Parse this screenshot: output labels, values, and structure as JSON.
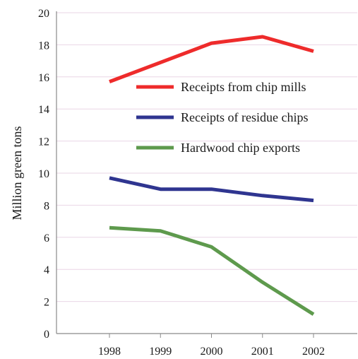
{
  "chart_data": {
    "type": "line",
    "title": "",
    "xlabel": "",
    "ylabel": "Million green tons",
    "ylim": [
      0,
      20
    ],
    "yticks": [
      0,
      2,
      4,
      6,
      8,
      10,
      12,
      14,
      16,
      18,
      20
    ],
    "x": [
      "1998",
      "1999",
      "2000",
      "2001",
      "2002"
    ],
    "grid": "horizontal",
    "legend_position": "upper-right inside plot",
    "series": [
      {
        "name": "Receipts from chip mills",
        "color": "#ee2b2b",
        "values": [
          15.7,
          16.9,
          18.1,
          18.5,
          17.6
        ]
      },
      {
        "name": "Receipts of residue chips",
        "color": "#2f3590",
        "values": [
          9.7,
          9.0,
          9.0,
          8.6,
          8.3
        ]
      },
      {
        "name": "Hardwood chip exports",
        "color": "#5e9a4d",
        "values": [
          6.6,
          6.4,
          5.4,
          3.2,
          1.2
        ]
      }
    ]
  }
}
